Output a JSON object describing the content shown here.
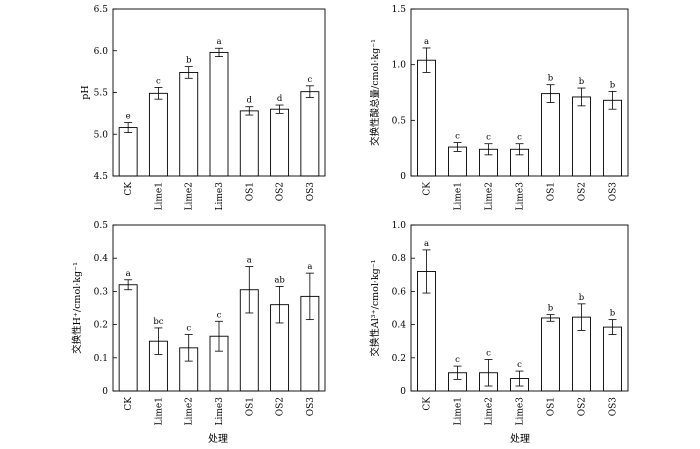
{
  "figure": {
    "xaxis_titles": [
      "处理",
      "处理"
    ]
  },
  "chart_data": [
    {
      "type": "bar",
      "ylabel": "pH",
      "ylim": [
        4.5,
        6.5
      ],
      "yticks": [
        "4.5",
        "5.0",
        "5.5",
        "6.0",
        "6.5"
      ],
      "categories": [
        "CK",
        "Lime1",
        "Lime2",
        "Lime3",
        "OS1",
        "OS2",
        "OS3"
      ],
      "values": [
        5.08,
        5.49,
        5.74,
        5.98,
        5.28,
        5.3,
        5.51
      ],
      "errors": [
        0.06,
        0.07,
        0.07,
        0.05,
        0.05,
        0.05,
        0.07
      ],
      "labels": [
        "e",
        "c",
        "b",
        "a",
        "d",
        "d",
        "c"
      ]
    },
    {
      "type": "bar",
      "ylabel": "交换性酸总量/cmol·kg⁻¹",
      "ylim": [
        0,
        1.5
      ],
      "yticks": [
        "0",
        "0.5",
        "1.0",
        "1.5"
      ],
      "categories": [
        "CK",
        "Lime1",
        "Lime2",
        "Lime3",
        "OS1",
        "OS2",
        "OS3"
      ],
      "values": [
        1.04,
        0.26,
        0.24,
        0.24,
        0.74,
        0.71,
        0.68
      ],
      "errors": [
        0.11,
        0.04,
        0.05,
        0.05,
        0.08,
        0.08,
        0.08
      ],
      "labels": [
        "a",
        "c",
        "c",
        "c",
        "b",
        "b",
        "b"
      ]
    },
    {
      "type": "bar",
      "ylabel": "交换性H⁺/cmol·kg⁻¹",
      "ylim": [
        0,
        0.5
      ],
      "yticks": [
        "0",
        "0.1",
        "0.2",
        "0.3",
        "0.4",
        "0.5"
      ],
      "categories": [
        "CK",
        "Lime1",
        "Lime2",
        "Lime3",
        "OS1",
        "OS2",
        "OS3"
      ],
      "values": [
        0.32,
        0.15,
        0.13,
        0.165,
        0.305,
        0.26,
        0.285
      ],
      "errors": [
        0.015,
        0.04,
        0.04,
        0.045,
        0.07,
        0.055,
        0.07
      ],
      "labels": [
        "a",
        "bc",
        "c",
        "c",
        "a",
        "ab",
        "a"
      ]
    },
    {
      "type": "bar",
      "ylabel": "交换性Al³⁺/cmol·kg⁻¹",
      "ylim": [
        0,
        1.0
      ],
      "yticks": [
        "0",
        "0.2",
        "0.4",
        "0.6",
        "0.8",
        "1.0"
      ],
      "categories": [
        "CK",
        "Lime1",
        "Lime2",
        "Lime3",
        "OS1",
        "OS2",
        "OS3"
      ],
      "values": [
        0.72,
        0.11,
        0.11,
        0.075,
        0.44,
        0.445,
        0.385
      ],
      "errors": [
        0.13,
        0.04,
        0.08,
        0.045,
        0.02,
        0.08,
        0.045
      ],
      "labels": [
        "a",
        "c",
        "c",
        "c",
        "b",
        "b",
        "b"
      ]
    }
  ]
}
